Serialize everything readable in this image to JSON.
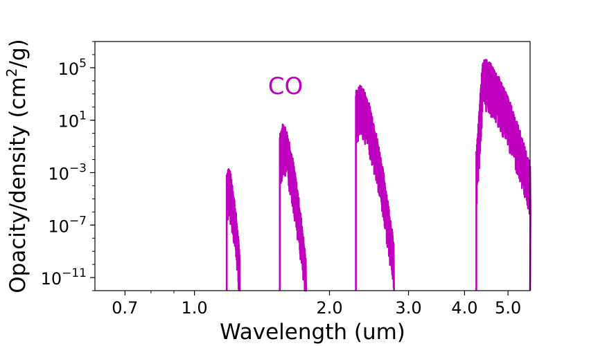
{
  "chart_data": {
    "type": "line",
    "title": "",
    "xlabel": "Wavelength  (um)",
    "ylabel": "Opacity/density  (cm",
    "ylabel_sup": "2",
    "ylabel_tail": "/g)",
    "xscale": "log",
    "yscale": "log",
    "xlim": [
      0.6,
      5.6
    ],
    "ylim_log10": [
      -12,
      7
    ],
    "grid": false,
    "x_ticks": [
      {
        "value": 0.7,
        "label": "0.7"
      },
      {
        "value": 1.0,
        "label": "1.0"
      },
      {
        "value": 2.0,
        "label": "2.0"
      },
      {
        "value": 3.0,
        "label": "3.0"
      },
      {
        "value": 4.0,
        "label": "4.0"
      },
      {
        "value": 5.0,
        "label": "5.0"
      }
    ],
    "x_minor_ticks": [
      0.8,
      0.9
    ],
    "y_ticks": [
      {
        "exp": -11,
        "base": "10",
        "sup": "−11"
      },
      {
        "exp": -7,
        "base": "10",
        "sup": "−7"
      },
      {
        "exp": -3,
        "base": "10",
        "sup": "−3"
      },
      {
        "exp": 1,
        "base": "10",
        "sup": "1"
      },
      {
        "exp": 5,
        "base": "10",
        "sup": "5"
      }
    ],
    "annotations": [
      {
        "text": "CO"
      }
    ],
    "series": [
      {
        "color": "#bf00bf",
        "bands": [
          {
            "x_start": 1.18,
            "x_end": 1.26,
            "floor_log10": -12,
            "start_log10": -3.5,
            "peak_log10": -3.1,
            "end_log10": -9.5
          },
          {
            "x_start": 1.55,
            "x_end": 1.77,
            "floor_log10": -12,
            "start_log10": -0.5,
            "peak_log10": 0.2,
            "end_log10": -10
          },
          {
            "x_start": 2.29,
            "x_end": 2.78,
            "floor_log10": -12,
            "start_log10": 2.7,
            "peak_log10": 3.1,
            "end_log10": -8.8
          },
          {
            "x_start": 4.25,
            "x_end": 5.6,
            "floor_log10": -12,
            "start_log10": -2,
            "peak_log10": 5.2,
            "end_log10": -3
          }
        ]
      }
    ]
  }
}
